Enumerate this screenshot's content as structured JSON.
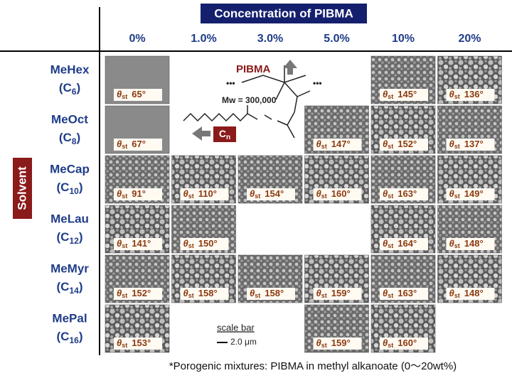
{
  "header": {
    "title": "Concentration of PIBMA",
    "columns": [
      "0%",
      "1.0%",
      "3.0%",
      "5.0%",
      "10%",
      "20%"
    ]
  },
  "side_label": "Solvent",
  "angle_symbol": "θ",
  "angle_sub": "st",
  "rows": [
    {
      "name": "MeHex",
      "open": "(C",
      "sub": "6",
      "close": ")",
      "cells": [
        "65°",
        null,
        null,
        null,
        "145°",
        "136°"
      ]
    },
    {
      "name": "MeOct",
      "open": "(C",
      "sub": "8",
      "close": ")",
      "cells": [
        "67°",
        null,
        null,
        "147°",
        "152°",
        "137°"
      ]
    },
    {
      "name": "MeCap",
      "open": "(C",
      "sub": "10",
      "close": ")",
      "cells": [
        "91°",
        "110°",
        "154°",
        "160°",
        "163°",
        "149°"
      ]
    },
    {
      "name": "MeLau",
      "open": "(C",
      "sub": "12",
      "close": ")",
      "cells": [
        "141°",
        "150°",
        null,
        null,
        "164°",
        "148°"
      ]
    },
    {
      "name": "MeMyr",
      "open": "(C",
      "sub": "14",
      "close": ")",
      "cells": [
        "152°",
        "158°",
        "158°",
        "159°",
        "163°",
        "148°"
      ]
    },
    {
      "name": "MePal",
      "open": "(C",
      "sub": "16",
      "close": ")",
      "cells": [
        "153°",
        null,
        null,
        "159°",
        "160°",
        null
      ]
    }
  ],
  "inset": {
    "polymer": "PIBMA",
    "mw": "Mw = 300,000",
    "dots": "•••",
    "chain": "C",
    "chain_sub": "n"
  },
  "scale": {
    "label": "scale bar",
    "length": "2.0 μm"
  },
  "footnote": "*Porogenic mixtures: PIBMA in methyl alkanoate (0～20wt%)"
}
